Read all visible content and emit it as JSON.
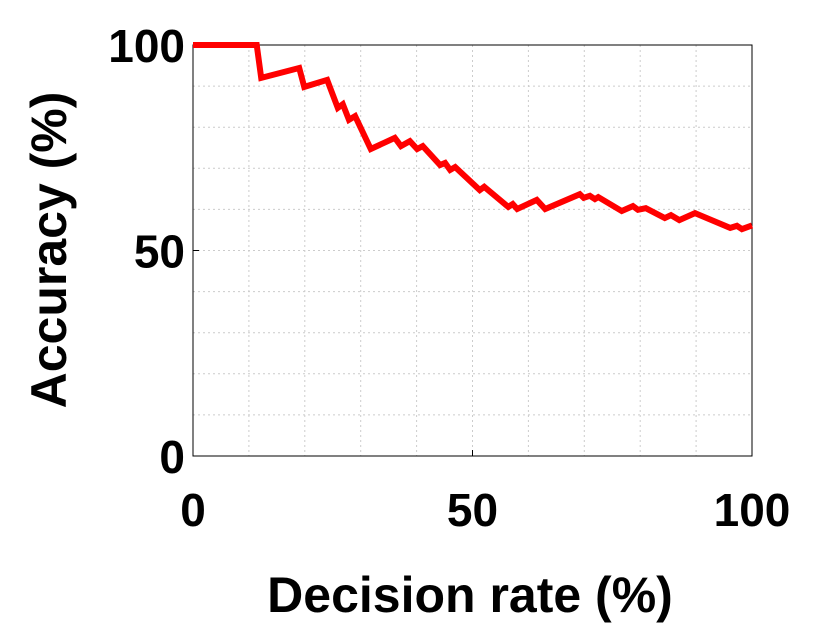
{
  "chart_data": {
    "type": "line",
    "x_label": "Decision rate (%)",
    "y_label": "Accuracy (%)",
    "x": [
      0,
      11.4,
      12.2,
      19,
      19.9,
      24,
      25.9,
      26.8,
      27.9,
      29,
      31.8,
      36.1,
      37.2,
      38.8,
      40.1,
      41.1,
      44.2,
      45.1,
      46,
      46.9,
      51.3,
      52.1,
      56.4,
      57.2,
      58,
      61.5,
      63,
      69.2,
      69.9,
      71,
      71.9,
      72.5,
      76.7,
      78.7,
      79.6,
      81,
      84.4,
      85.5,
      87,
      89.8,
      96.1,
      97.3,
      98.2,
      100
    ],
    "series": [
      {
        "color": "#ff0000",
        "values": [
          100,
          100,
          92,
          94.4,
          89.8,
          91.5,
          84.7,
          85.6,
          81.8,
          82.7,
          74.7,
          77.4,
          75.4,
          76.6,
          74.7,
          75.4,
          70.8,
          71.3,
          69.6,
          70.3,
          64.7,
          65.5,
          60.6,
          61.3,
          60.1,
          62.3,
          60.1,
          63.7,
          62.8,
          63.3,
          62.5,
          63,
          59.6,
          60.8,
          59.9,
          60.3,
          57.9,
          58.6,
          57.4,
          59.1,
          55.5,
          56,
          55.2,
          56.1
        ]
      }
    ],
    "xlim": [
      0,
      100
    ],
    "ylim": [
      0,
      100
    ],
    "xticks": [
      0,
      50,
      100
    ],
    "yticks": [
      0,
      50,
      100
    ],
    "x_minor_grid": [
      10,
      20,
      30,
      40,
      50,
      60,
      70,
      80,
      90
    ],
    "y_minor_grid": [
      10,
      20,
      30,
      40,
      50,
      60,
      70,
      80,
      90
    ],
    "grid": true
  }
}
